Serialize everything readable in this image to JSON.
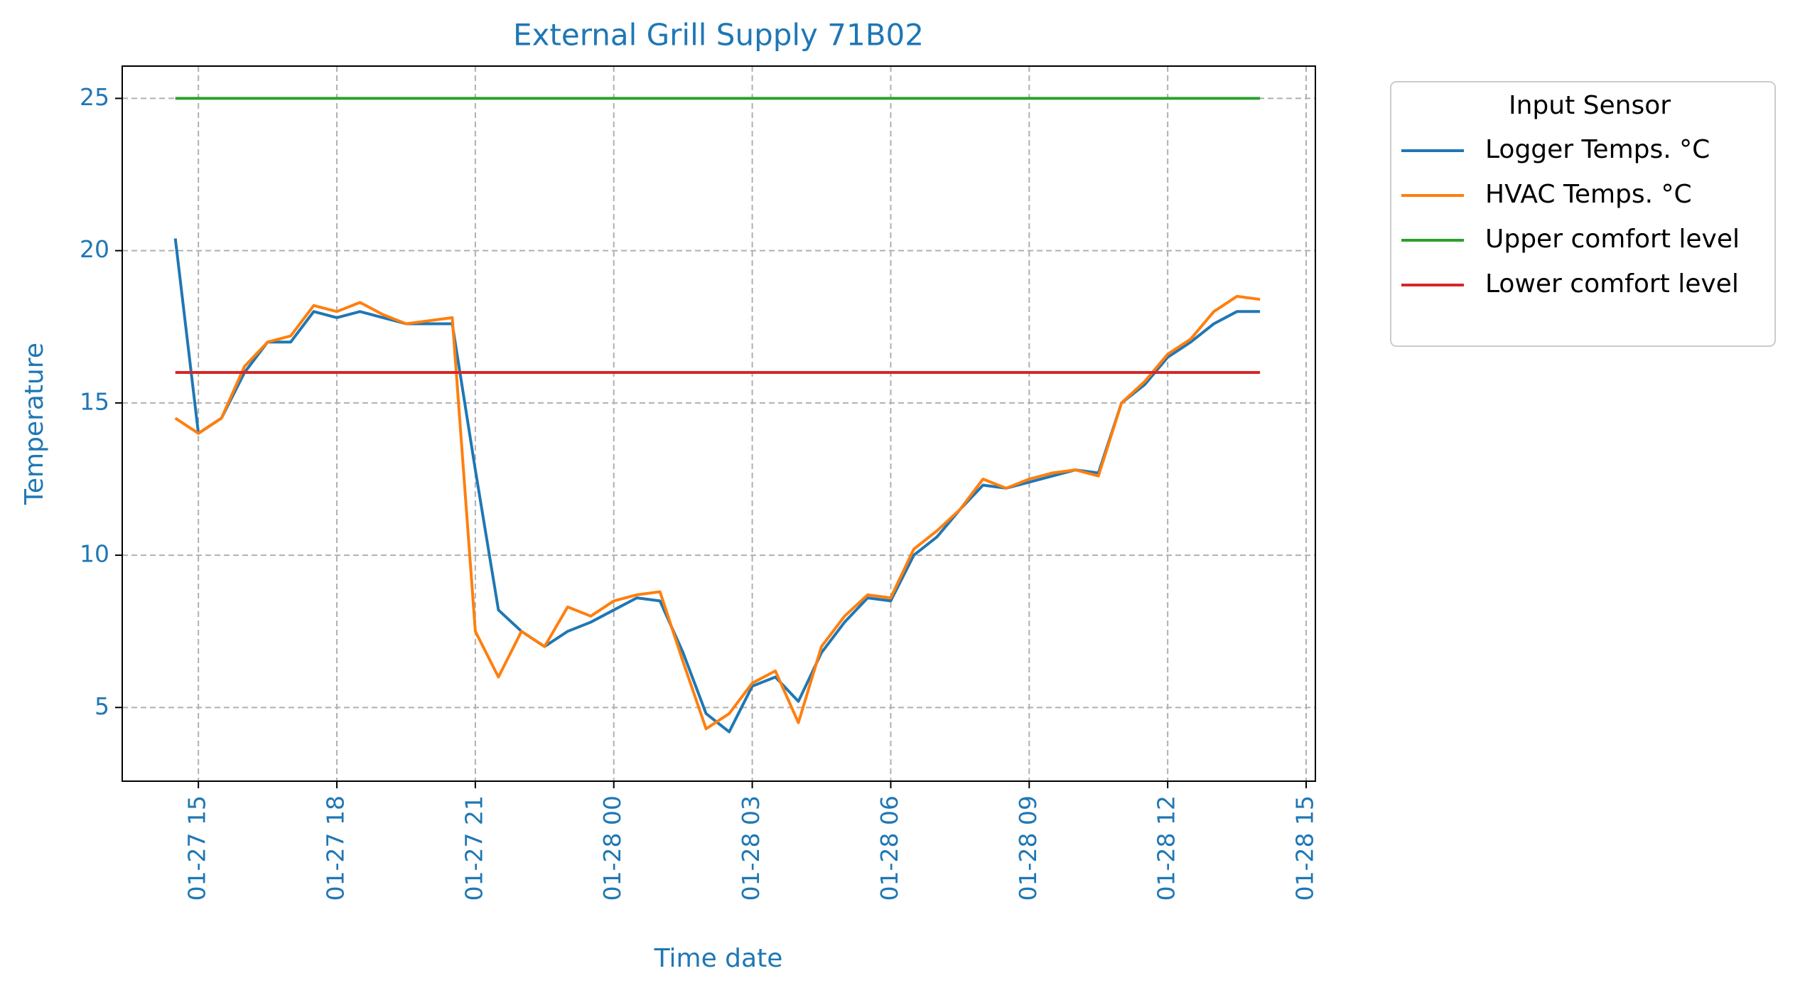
{
  "chart_data": {
    "type": "line",
    "title": "External Grill Supply 71B02",
    "x_label": "Time date",
    "y_label": "Temperature",
    "legend_title": "Input Sensor",
    "legend": "outside upper right",
    "grid": true,
    "x": [
      "01-27 14:30",
      "01-27 15:00",
      "01-27 15:30",
      "01-27 16:00",
      "01-27 16:30",
      "01-27 17:00",
      "01-27 17:30",
      "01-27 18:00",
      "01-27 18:30",
      "01-27 19:00",
      "01-27 19:30",
      "01-27 20:00",
      "01-27 20:30",
      "01-27 21:00",
      "01-27 21:30",
      "01-27 22:00",
      "01-27 22:30",
      "01-27 23:00",
      "01-27 23:30",
      "01-28 00:00",
      "01-28 00:30",
      "01-28 01:00",
      "01-28 01:30",
      "01-28 02:00",
      "01-28 02:30",
      "01-28 03:00",
      "01-28 03:30",
      "01-28 04:00",
      "01-28 04:30",
      "01-28 05:00",
      "01-28 05:30",
      "01-28 06:00",
      "01-28 06:30",
      "01-28 07:00",
      "01-28 07:30",
      "01-28 08:00",
      "01-28 08:30",
      "01-28 09:00",
      "01-28 09:30",
      "01-28 10:00",
      "01-28 10:30",
      "01-28 11:00",
      "01-28 11:30",
      "01-28 12:00",
      "01-28 12:30",
      "01-28 13:00",
      "01-28 13:30",
      "01-28 14:00"
    ],
    "series": [
      {
        "name": "Logger Temps. °C",
        "color": "#1f77b4",
        "values": [
          20.4,
          14.0,
          14.5,
          16.0,
          17.0,
          17.0,
          18.0,
          17.8,
          18.0,
          17.8,
          17.6,
          17.6,
          17.6,
          12.8,
          8.2,
          7.5,
          7.0,
          7.5,
          7.8,
          8.2,
          8.6,
          8.5,
          6.8,
          4.8,
          4.2,
          5.7,
          6.0,
          5.2,
          6.8,
          7.8,
          8.6,
          8.5,
          10.0,
          10.6,
          11.5,
          12.3,
          12.2,
          12.4,
          12.6,
          12.8,
          12.7,
          15.0,
          15.6,
          16.5,
          17.0,
          17.6,
          18.0,
          18.0
        ]
      },
      {
        "name": "HVAC Temps. °C",
        "color": "#ff7f0e",
        "values": [
          14.5,
          14.0,
          14.5,
          16.2,
          17.0,
          17.2,
          18.2,
          18.0,
          18.3,
          17.9,
          17.6,
          17.7,
          17.8,
          7.5,
          6.0,
          7.5,
          7.0,
          8.3,
          8.0,
          8.5,
          8.7,
          8.8,
          6.5,
          4.3,
          4.8,
          5.8,
          6.2,
          4.5,
          7.0,
          8.0,
          8.7,
          8.6,
          10.2,
          10.8,
          11.5,
          12.5,
          12.2,
          12.5,
          12.7,
          12.8,
          12.6,
          15.0,
          15.7,
          16.6,
          17.1,
          18.0,
          18.5,
          18.4
        ]
      },
      {
        "name": "Upper comfort level",
        "color": "#2ca02c",
        "values": [
          25,
          25,
          25,
          25,
          25,
          25,
          25,
          25,
          25,
          25,
          25,
          25,
          25,
          25,
          25,
          25,
          25,
          25,
          25,
          25,
          25,
          25,
          25,
          25,
          25,
          25,
          25,
          25,
          25,
          25,
          25,
          25,
          25,
          25,
          25,
          25,
          25,
          25,
          25,
          25,
          25,
          25,
          25,
          25,
          25,
          25,
          25,
          25
        ]
      },
      {
        "name": "Lower comfort level",
        "color": "#d62728",
        "values": [
          16,
          16,
          16,
          16,
          16,
          16,
          16,
          16,
          16,
          16,
          16,
          16,
          16,
          16,
          16,
          16,
          16,
          16,
          16,
          16,
          16,
          16,
          16,
          16,
          16,
          16,
          16,
          16,
          16,
          16,
          16,
          16,
          16,
          16,
          16,
          16,
          16,
          16,
          16,
          16,
          16,
          16,
          16,
          16,
          16,
          16,
          16,
          16
        ]
      }
    ],
    "xlim": [
      "01-27 13:21",
      "01-28 15:12"
    ],
    "xticks": [
      {
        "value": "01-27 15:00",
        "label": "01-27 15"
      },
      {
        "value": "01-27 18:00",
        "label": "01-27 18"
      },
      {
        "value": "01-27 21:00",
        "label": "01-27 21"
      },
      {
        "value": "01-28 00:00",
        "label": "01-28 00"
      },
      {
        "value": "01-28 03:00",
        "label": "01-28 03"
      },
      {
        "value": "01-28 06:00",
        "label": "01-28 06"
      },
      {
        "value": "01-28 09:00",
        "label": "01-28 09"
      },
      {
        "value": "01-28 12:00",
        "label": "01-28 12"
      },
      {
        "value": "01-28 15:00",
        "label": "01-28 15"
      }
    ],
    "ylim": [
      2.58,
      26.06
    ],
    "yticks": [
      5,
      10,
      15,
      20,
      25
    ]
  }
}
